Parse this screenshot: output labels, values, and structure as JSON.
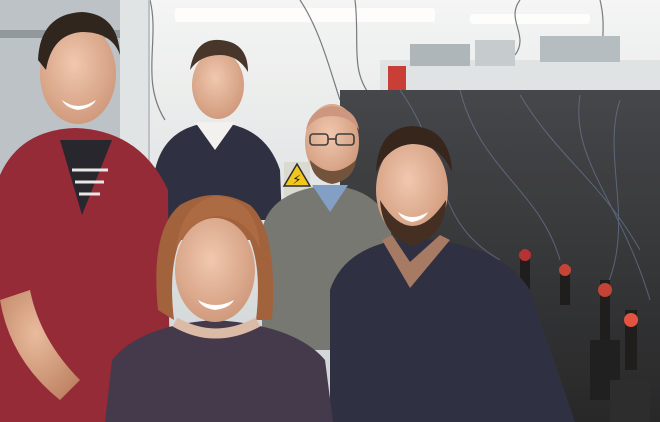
{
  "photo": {
    "people_count": 5,
    "setting": "optics-laboratory",
    "warning_sign": {
      "symbol": "⚡"
    },
    "colors": {
      "ceiling": "#e9edf0",
      "wall": "#cfd6da",
      "bench": "#2d2f33",
      "red_hoodie": "#8f1f2e",
      "navy_sweater": "#22263a",
      "gray_sweater": "#6f716c",
      "purple_top": "#3a2f45",
      "sign_yellow": "#f1c514"
    }
  }
}
